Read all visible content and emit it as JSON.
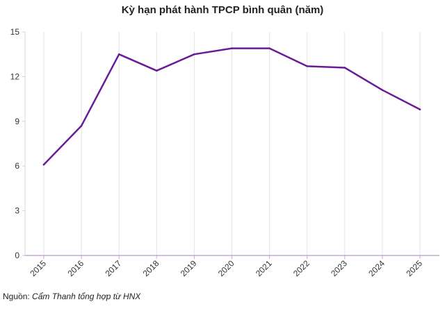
{
  "chart_data": {
    "type": "line",
    "title": "Kỳ hạn phát hành TPCP bình quân (năm)",
    "x": [
      "2015",
      "2016",
      "2017",
      "2018",
      "2019",
      "2020",
      "2021",
      "2022",
      "2023",
      "2024",
      "2025"
    ],
    "series": [
      {
        "values": [
          6.1,
          8.7,
          13.5,
          12.4,
          13.5,
          13.9,
          13.9,
          12.7,
          12.6,
          11.1,
          9.8
        ]
      }
    ],
    "yticks": [
      "0",
      "3",
      "6",
      "9",
      "12",
      "15"
    ],
    "ylim": [
      0,
      15
    ],
    "grid": "vertical",
    "line_color": "#6a1b9a",
    "axis_color": "#c9a6d6"
  },
  "source": {
    "label": "Nguồn:",
    "text": "Cẩm Thanh tổng hợp từ HNX"
  }
}
